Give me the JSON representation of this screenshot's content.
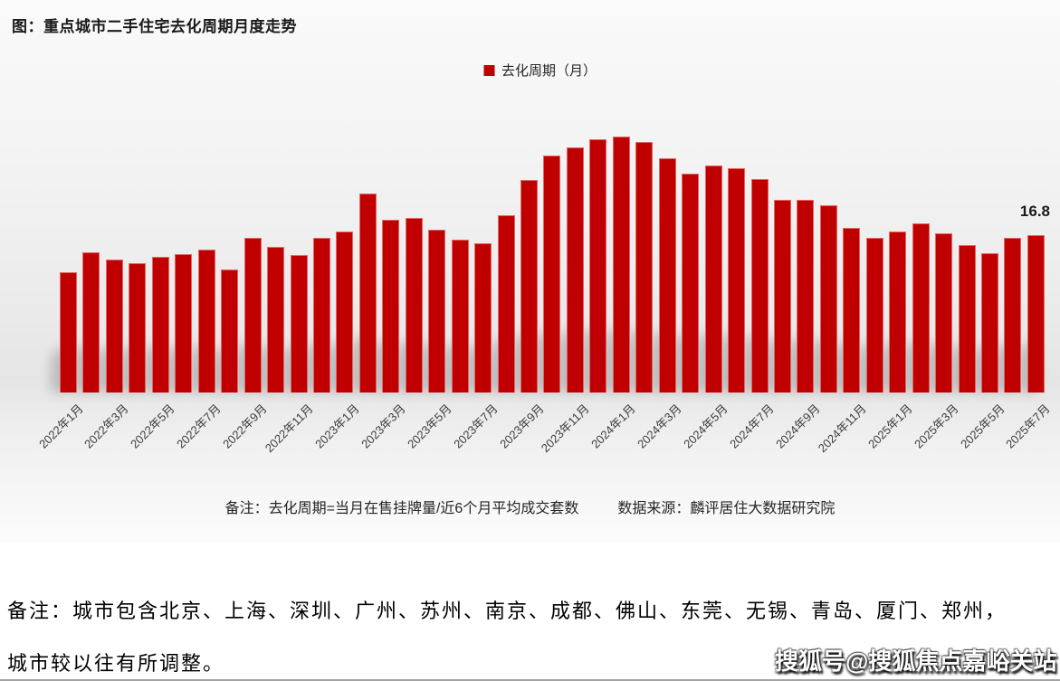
{
  "title": "图：重点城市二手住宅去化周期月度走势",
  "legend": {
    "label": "去化周期（月）",
    "color": "#c00000"
  },
  "chart_data": {
    "type": "bar",
    "title": "图：重点城市二手住宅去化周期月度走势",
    "series_name": "去化周期（月）",
    "bar_color": "#c00000",
    "categories": [
      "2022年1月",
      "2022年2月",
      "2022年3月",
      "2022年4月",
      "2022年5月",
      "2022年6月",
      "2022年7月",
      "2022年8月",
      "2022年9月",
      "2022年10月",
      "2022年11月",
      "2022年12月",
      "2023年1月",
      "2023年2月",
      "2023年3月",
      "2023年4月",
      "2023年5月",
      "2023年6月",
      "2023年7月",
      "2023年8月",
      "2023年9月",
      "2023年10月",
      "2023年11月",
      "2023年12月",
      "2024年1月",
      "2024年2月",
      "2024年3月",
      "2024年4月",
      "2024年5月",
      "2024年6月",
      "2024年7月",
      "2024年8月",
      "2024年9月",
      "2024年10月",
      "2024年11月",
      "2024年12月",
      "2025年1月",
      "2025年2月",
      "2025年3月",
      "2025年4月",
      "2025年5月",
      "2025年6月",
      "2025年7月"
    ],
    "values": [
      12.8,
      15.0,
      14.2,
      13.8,
      14.5,
      14.8,
      15.3,
      13.1,
      16.5,
      15.5,
      14.7,
      16.5,
      17.2,
      21.2,
      18.4,
      18.6,
      17.4,
      16.3,
      15.9,
      18.9,
      22.7,
      25.3,
      26.2,
      27.0,
      27.3,
      26.7,
      25.0,
      23.4,
      24.2,
      23.9,
      22.8,
      20.6,
      20.6,
      20.0,
      17.6,
      16.5,
      17.2,
      18.1,
      17.0,
      15.7,
      14.9,
      16.5,
      16.8
    ],
    "xlabel": "",
    "ylabel": "",
    "ylim": [
      0,
      30
    ],
    "grid": false,
    "legend_position": "top-center",
    "x_tick_step": 2,
    "data_labels": [
      {
        "index": 42,
        "text": "16.8"
      }
    ]
  },
  "annotations": {
    "last_value_label": "16.8"
  },
  "notes": {
    "formula": "备注：去化周期=当月在售挂牌量/近6个月平均成交套数",
    "source": "数据来源：麟评居住大数据研究院"
  },
  "footer": {
    "line1": "备注：城市包含北京、上海、深圳、广州、苏州、南京、成都、佛山、东莞、无锡、青岛、厦门、郑州，",
    "line2": "城市较以往有所调整。"
  },
  "watermark": "搜狐号@搜狐焦点嘉峪关站"
}
